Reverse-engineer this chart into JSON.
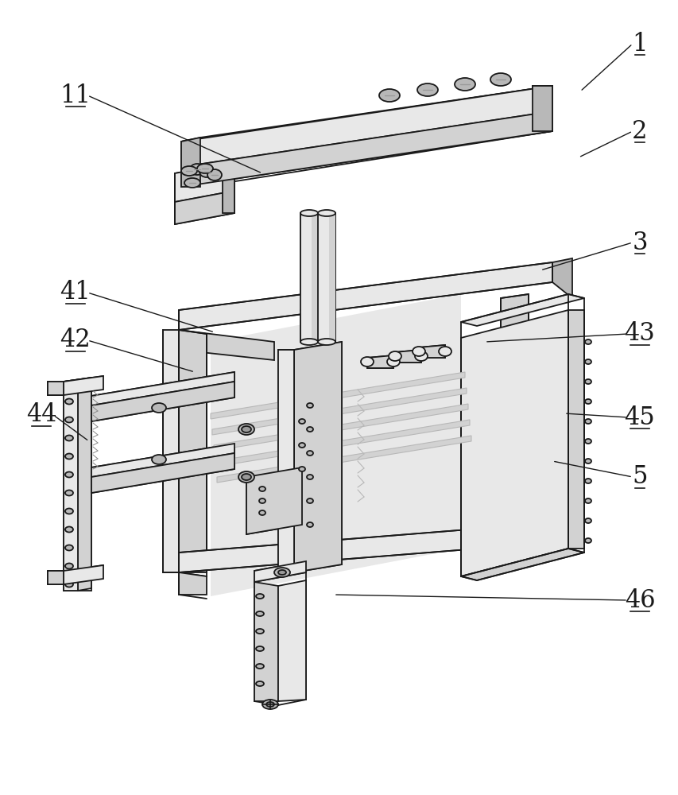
{
  "bg_color": "#ffffff",
  "line_color": "#1a1a1a",
  "face_white": "#f5f5f5",
  "face_light": "#e8e8e8",
  "face_mid": "#d2d2d2",
  "face_dark": "#b8b8b8",
  "face_darker": "#9a9a9a",
  "figsize": [
    8.54,
    10.0
  ],
  "dpi": 100,
  "refs": [
    [
      "1",
      805,
      55,
      730,
      115,
      "right"
    ],
    [
      "2",
      805,
      165,
      728,
      198,
      "right"
    ],
    [
      "3",
      805,
      305,
      680,
      340,
      "right"
    ],
    [
      "11",
      95,
      120,
      330,
      218,
      "left"
    ],
    [
      "41",
      95,
      368,
      270,
      418,
      "left"
    ],
    [
      "42",
      95,
      428,
      245,
      468,
      "left"
    ],
    [
      "43",
      805,
      420,
      610,
      430,
      "right"
    ],
    [
      "44",
      52,
      522,
      112,
      555,
      "left"
    ],
    [
      "45",
      805,
      525,
      710,
      520,
      "right"
    ],
    [
      "5",
      805,
      600,
      695,
      580,
      "right"
    ],
    [
      "46",
      805,
      755,
      420,
      748,
      "right"
    ]
  ]
}
